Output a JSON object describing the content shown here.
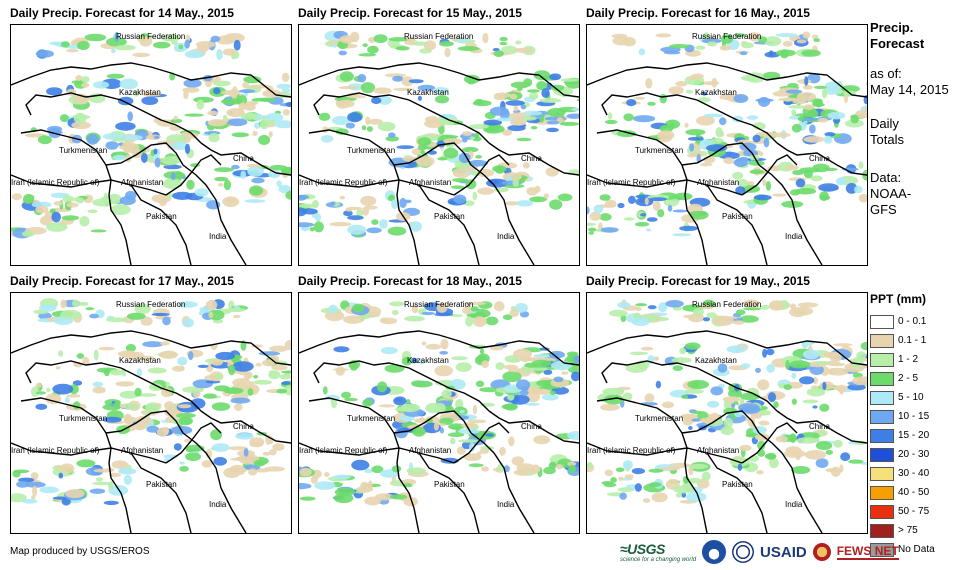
{
  "panels": [
    {
      "title": "Daily Precip. Forecast for 14 May., 2015",
      "seed": 14
    },
    {
      "title": "Daily Precip. Forecast for 15 May., 2015",
      "seed": 15
    },
    {
      "title": "Daily Precip. Forecast for 16 May., 2015",
      "seed": 16
    },
    {
      "title": "Daily Precip. Forecast for 17 May., 2015",
      "seed": 17
    },
    {
      "title": "Daily Precip. Forecast for 18 May., 2015",
      "seed": 18
    },
    {
      "title": "Daily Precip. Forecast for 19 May., 2015",
      "seed": 19
    }
  ],
  "map_labels": {
    "russia": "Russian Federation",
    "kazakhstan": "Kazakhstan",
    "turkmenistan": "Turkmenistan",
    "iran": "Iran  (Islamic Republic of)",
    "afghanistan": "Afghanistan",
    "china": "China",
    "pakistan": "Pakistan",
    "india": "India"
  },
  "sidebar": {
    "title_line1": "Precip.",
    "title_line2": "Forecast",
    "asof_line1": "as of:",
    "asof_line2": "May 14, 2015",
    "totals_line1": "Daily",
    "totals_line2": "Totals",
    "data_line1": "Data:",
    "data_line2": "NOAA-",
    "data_line3": "GFS"
  },
  "legend": {
    "title": "PPT (mm)",
    "items": [
      {
        "label": "0 - 0.1",
        "color": "#ffffff"
      },
      {
        "label": "0.1 - 1",
        "color": "#e8d5b0"
      },
      {
        "label": "1 - 2",
        "color": "#b6eeaa"
      },
      {
        "label": "2 - 5",
        "color": "#6cdb6c"
      },
      {
        "label": "5 - 10",
        "color": "#aeeaf5"
      },
      {
        "label": "10 - 15",
        "color": "#6fa8f0"
      },
      {
        "label": "15 - 20",
        "color": "#3d7fe6"
      },
      {
        "label": "20 - 30",
        "color": "#1f4fd6"
      },
      {
        "label": "30 - 40",
        "color": "#f5e07a"
      },
      {
        "label": "40 - 50",
        "color": "#f5a000"
      },
      {
        "label": "50 - 75",
        "color": "#e83010"
      },
      {
        "label": "> 75",
        "color": "#a02020"
      },
      {
        "label": "No Data",
        "color": "#9a9a9a"
      }
    ]
  },
  "credit": "Map produced by USGS/EROS",
  "logos": {
    "usgs_name": "≈USGS",
    "usgs_tag": "science for a changing world",
    "usaid": "USAID",
    "fewsnet": "FEWS NET"
  }
}
